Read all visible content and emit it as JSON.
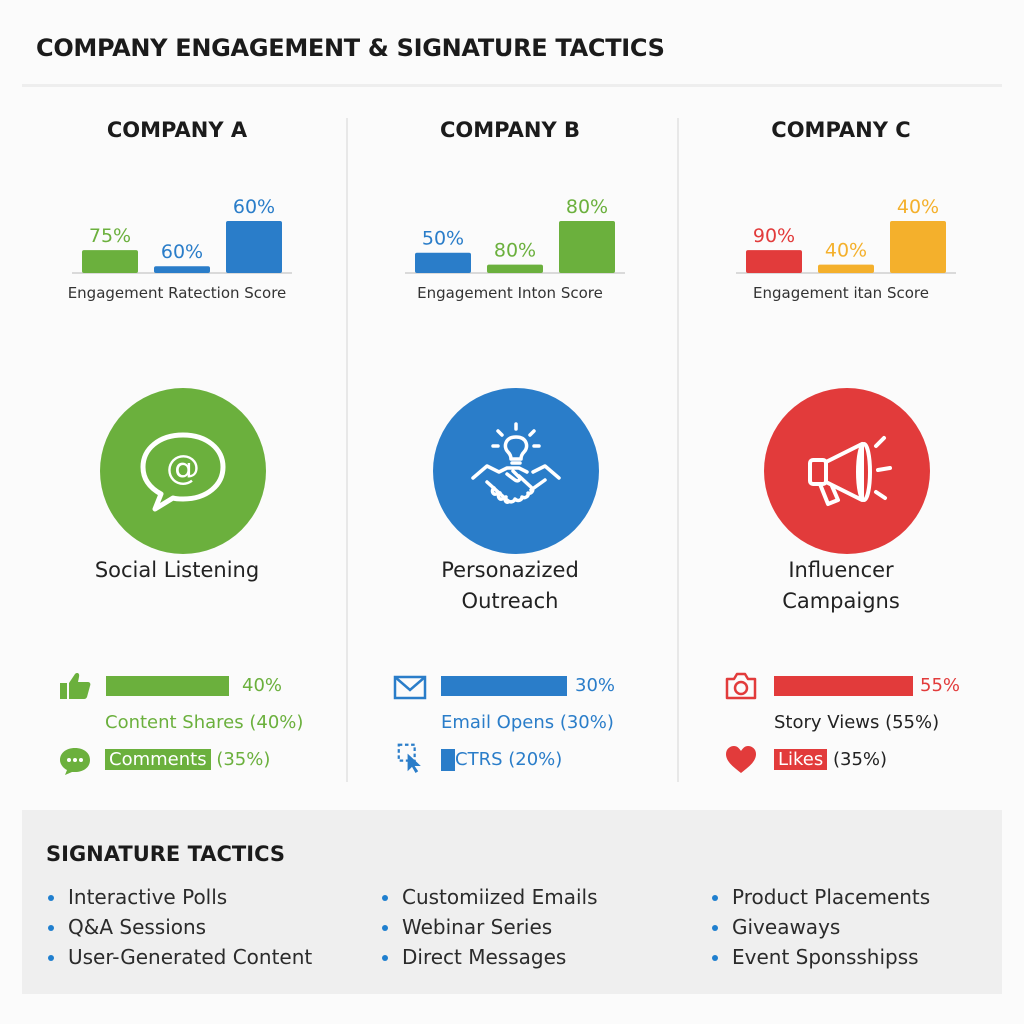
{
  "title": "COMPANY ENGAGEMENT & SIGNATURE TACTICS",
  "colors": {
    "a": "#6bb03d",
    "b": "#2a7dc9",
    "c_red": "#e23b3b",
    "c_yellow": "#f4b02c"
  },
  "companies": [
    {
      "name": "COMPANY A",
      "score_label": "Engagement Ratection Score",
      "tactic": [
        "Social Listening"
      ],
      "icon": "at-speech-bubble-icon",
      "metric1": {
        "icon": "thumbs-up-icon",
        "value": "40%",
        "label": "Content Shares (40%)"
      },
      "metric2": {
        "icon": "comment-bubble-icon",
        "label_hl": "Comments",
        "label_rest": "(35%)"
      }
    },
    {
      "name": "COMPANY B",
      "score_label": "Engagement Inton Score",
      "tactic": [
        "Personazized",
        "Outreach"
      ],
      "icon": "handshake-lightbulb-icon",
      "metric1": {
        "icon": "envelope-icon",
        "value": "30%",
        "label": "Email Opens (30%)"
      },
      "metric2": {
        "icon": "click-cursor-icon",
        "label_hl": "",
        "label_rest": "CTRS (20%)"
      }
    },
    {
      "name": "COMPANY C",
      "score_label": "Engagement itan Score",
      "tactic": [
        "Influencer",
        "Campaigns"
      ],
      "icon": "megaphone-icon",
      "metric1": {
        "icon": "camera-icon",
        "value": "55%",
        "label": "Story Views (55%)"
      },
      "metric2": {
        "icon": "heart-icon",
        "label_hl": "Likes",
        "label_rest": "(35%)"
      }
    }
  ],
  "chart_data": [
    {
      "type": "bar",
      "title": "COMPANY A",
      "xlabel": "Engagement Ratection Score",
      "labels": [
        "75%",
        "60%",
        "60%"
      ],
      "values": [
        75,
        60,
        60
      ],
      "heights_rel": [
        0.44,
        0.13,
        1.0
      ],
      "colors": [
        "#6bb03d",
        "#2a7dc9",
        "#2a7dc9"
      ]
    },
    {
      "type": "bar",
      "title": "COMPANY B",
      "xlabel": "Engagement Inton Score",
      "labels": [
        "50%",
        "80%",
        "80%"
      ],
      "values": [
        50,
        80,
        80
      ],
      "heights_rel": [
        0.39,
        0.16,
        1.0
      ],
      "colors": [
        "#2a7dc9",
        "#6bb03d",
        "#6bb03d"
      ]
    },
    {
      "type": "bar",
      "title": "COMPANY C",
      "xlabel": "Engagement itan Score",
      "labels": [
        "90%",
        "40%",
        "40%"
      ],
      "values": [
        90,
        40,
        40
      ],
      "heights_rel": [
        0.44,
        0.16,
        1.0
      ],
      "colors": [
        "#e23b3b",
        "#f4b02c",
        "#f4b02c"
      ]
    }
  ],
  "signature": {
    "title": "SIGNATURE TACTICS",
    "lists": [
      [
        "Interactive Polls",
        "Q&A Sessions",
        "User-Generated Content"
      ],
      [
        "Customiized Emails",
        "Webinar Series",
        "Direct Messages"
      ],
      [
        "Product Placements",
        "Giveaways",
        "Event Sponsshipss"
      ]
    ]
  }
}
